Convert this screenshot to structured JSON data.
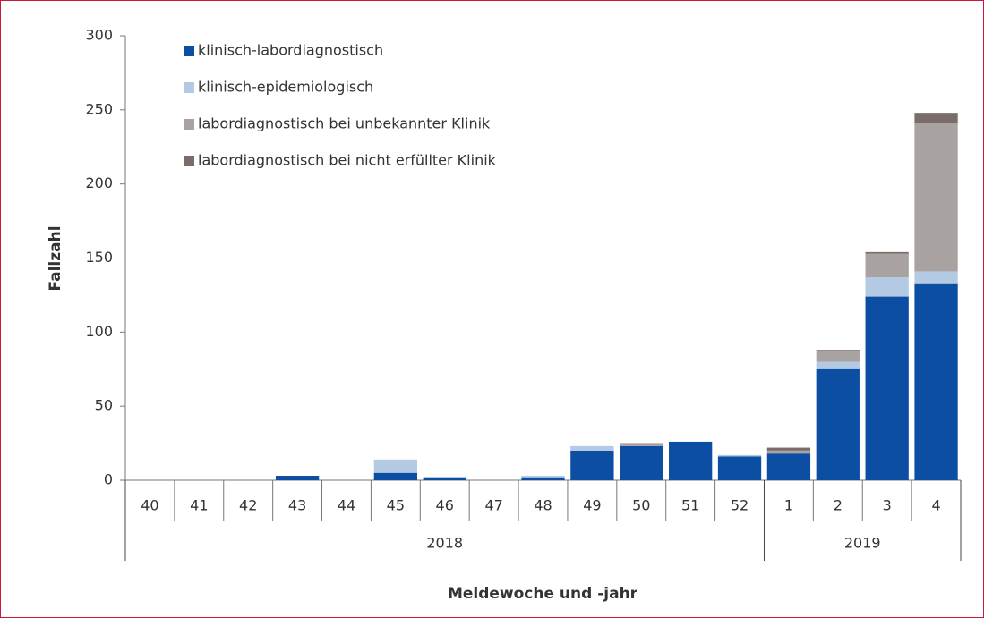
{
  "chart_data": {
    "type": "stacked_bar",
    "y_label": "Fallzahl",
    "x_label": "Meldewoche und -jahr",
    "category_groups": [
      {
        "label": "2018",
        "categories": [
          "40",
          "41",
          "42",
          "43",
          "44",
          "45",
          "46",
          "47",
          "48",
          "49",
          "50",
          "51",
          "52"
        ]
      },
      {
        "label": "2019",
        "categories": [
          "1",
          "2",
          "3",
          "4"
        ]
      }
    ],
    "series": [
      {
        "name": "klinisch-labordiagnostisch",
        "color": "#0b4ea2",
        "values": [
          0,
          0,
          0,
          3,
          0,
          5,
          2,
          0,
          2,
          20,
          23,
          26,
          16,
          18,
          75,
          124,
          133
        ]
      },
      {
        "name": "klinisch-epidemiologisch",
        "color": "#b3c9e4",
        "values": [
          0,
          0,
          0,
          0,
          0,
          9,
          0,
          0,
          1,
          3,
          0,
          0,
          1,
          0,
          5,
          13,
          8
        ]
      },
      {
        "name": "labordiagnostisch bei unbekannter Klinik",
        "color": "#a8a2a0",
        "values": [
          0,
          0,
          0,
          0,
          0,
          0,
          0,
          0,
          0,
          0,
          1,
          0,
          0,
          2,
          7,
          16,
          100
        ]
      },
      {
        "name": "labordiagnostisch bei nicht erfüllter Klinik",
        "color": "#7a6c69",
        "values": [
          0,
          0,
          0,
          0,
          0,
          0,
          0,
          0,
          0,
          0,
          1,
          0,
          0,
          2,
          1,
          1,
          7
        ]
      }
    ],
    "ylim": [
      0,
      300
    ],
    "yticks": [
      0,
      50,
      100,
      150,
      200,
      250,
      300
    ],
    "grid": false,
    "legend": "upper left"
  }
}
